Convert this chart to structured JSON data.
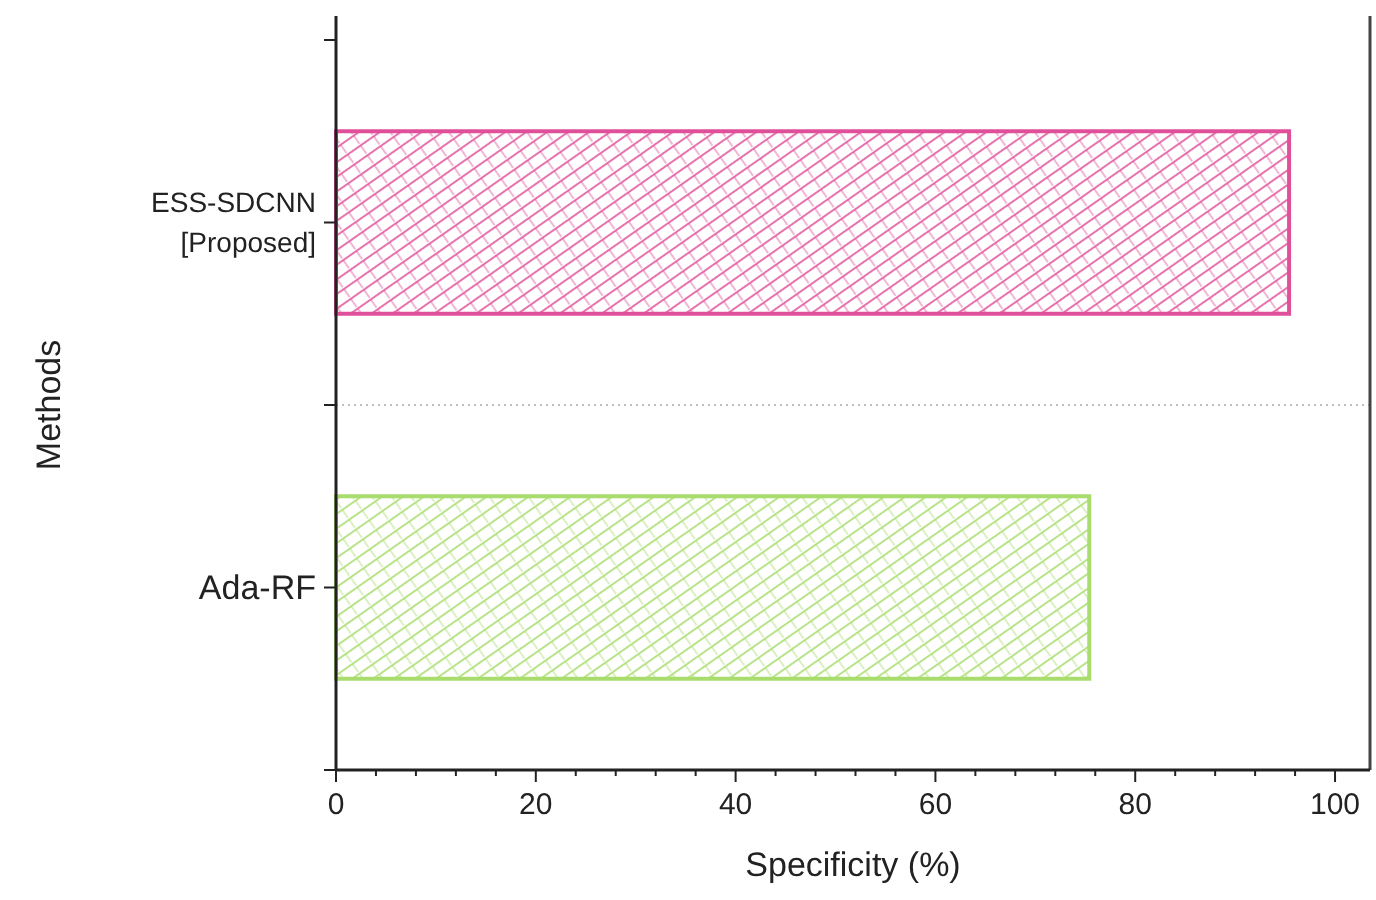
{
  "chart_data": {
    "type": "bar",
    "orientation": "horizontal",
    "xlabel": "Specificity (%)",
    "ylabel": "Methods",
    "categories": [
      "ESS-SDCNN [Proposed]",
      "Ada-RF"
    ],
    "values": [
      95.4,
      75.4
    ],
    "colors": [
      "#e0509a",
      "#a8dc6c"
    ],
    "xlim": [
      0,
      103.5
    ],
    "xticks": [
      0,
      {
        "value": 4,
        "label": null
      },
      {
        "value": 8,
        "label": null
      },
      {
        "value": 12,
        "label": null
      },
      {
        "value": 16,
        "label": null
      },
      20,
      {
        "value": 24,
        "label": null
      },
      {
        "value": 28,
        "label": null
      },
      {
        "value": 32,
        "label": null
      },
      {
        "value": 36,
        "label": null
      },
      40,
      {
        "value": 44,
        "label": null
      },
      {
        "value": 48,
        "label": null
      },
      {
        "value": 52,
        "label": null
      },
      {
        "value": 56,
        "label": null
      },
      60,
      {
        "value": 64,
        "label": null
      },
      {
        "value": 68,
        "label": null
      },
      {
        "value": 72,
        "label": null
      },
      {
        "value": 76,
        "label": null
      },
      80,
      {
        "value": 84,
        "label": null
      },
      {
        "value": 88,
        "label": null
      },
      {
        "value": 92,
        "label": null
      },
      {
        "value": 96,
        "label": null
      },
      100
    ],
    "grid": "y"
  }
}
